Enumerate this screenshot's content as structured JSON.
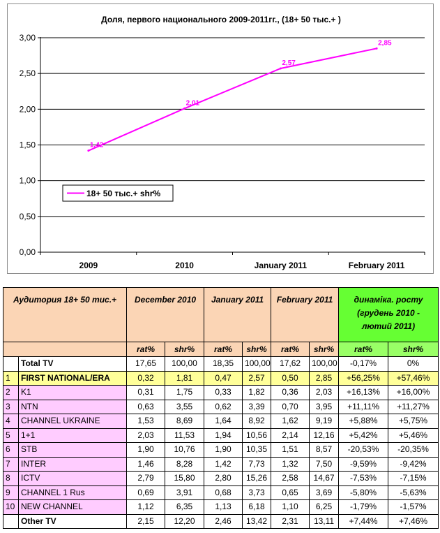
{
  "chart_data": {
    "type": "line",
    "title": "Доля, первого национального 2009-2011гг., (18+ 50 тыс.+ )",
    "categories": [
      "2009",
      "2010",
      "January 2011",
      "February 2011"
    ],
    "series": [
      {
        "name": "18+ 50 тыс.+ shr%",
        "values": [
          1.42,
          2.01,
          2.57,
          2.85
        ],
        "labels": [
          "1,42",
          "2,01",
          "2,57",
          "2,85"
        ]
      }
    ],
    "ylim": [
      0,
      3
    ],
    "yticks": [
      "0,00",
      "0,50",
      "1,00",
      "1,50",
      "2,00",
      "2,50",
      "3,00"
    ],
    "grid": true,
    "legend": "left",
    "line_color": "#ff00ff"
  },
  "table": {
    "audience_label": "Аудитория 18+ 50 тис.+",
    "periods": [
      "December 2010",
      "January 2011",
      "February 2011"
    ],
    "dynamics_label": "динамiка. росту (грудень 2010 - лютий 2011)",
    "sub_headers": [
      "rat%",
      "shr%"
    ],
    "rows": [
      {
        "rank": "",
        "name": "Total TV",
        "values": [
          "17,65",
          "100,00",
          "18,35",
          "100,00",
          "17,62",
          "100,00"
        ],
        "dyn": [
          "-0,17%",
          "0%"
        ]
      },
      {
        "rank": "1",
        "name": "FIRST NATIONAL/ERA",
        "values": [
          "0,32",
          "1,81",
          "0,47",
          "2,57",
          "0,50",
          "2,85"
        ],
        "dyn": [
          "+56,25%",
          "+57,46%"
        ]
      },
      {
        "rank": "2",
        "name": "K1",
        "values": [
          "0,31",
          "1,75",
          "0,33",
          "1,82",
          "0,36",
          "2,03"
        ],
        "dyn": [
          "+16,13%",
          "+16,00%"
        ]
      },
      {
        "rank": "3",
        "name": "NTN",
        "values": [
          "0,63",
          "3,55",
          "0,62",
          "3,39",
          "0,70",
          "3,95"
        ],
        "dyn": [
          "+11,11%",
          "+11,27%"
        ]
      },
      {
        "rank": "4",
        "name": "CHANNEL UKRAINE",
        "values": [
          "1,53",
          "8,69",
          "1,64",
          "8,92",
          "1,62",
          "9,19"
        ],
        "dyn": [
          "+5,88%",
          "+5,75%"
        ]
      },
      {
        "rank": "5",
        "name": "1+1",
        "values": [
          "2,03",
          "11,53",
          "1,94",
          "10,56",
          "2,14",
          "12,16"
        ],
        "dyn": [
          "+5,42%",
          "+5,46%"
        ]
      },
      {
        "rank": "6",
        "name": "STB",
        "values": [
          "1,90",
          "10,76",
          "1,90",
          "10,35",
          "1,51",
          "8,57"
        ],
        "dyn": [
          "-20,53%",
          "-20,35%"
        ]
      },
      {
        "rank": "7",
        "name": "INTER",
        "values": [
          "1,46",
          "8,28",
          "1,42",
          "7,73",
          "1,32",
          "7,50"
        ],
        "dyn": [
          "-9,59%",
          "-9,42%"
        ]
      },
      {
        "rank": "8",
        "name": "ICTV",
        "values": [
          "2,79",
          "15,80",
          "2,80",
          "15,26",
          "2,58",
          "14,67"
        ],
        "dyn": [
          "-7,53%",
          "-7,15%"
        ]
      },
      {
        "rank": "9",
        "name": "CHANNEL 1 Rus",
        "values": [
          "0,69",
          "3,91",
          "0,68",
          "3,73",
          "0,65",
          "3,69"
        ],
        "dyn": [
          "-5,80%",
          "-5,63%"
        ]
      },
      {
        "rank": "10",
        "name": "NEW CHANNEL",
        "values": [
          "1,12",
          "6,35",
          "1,13",
          "6,18",
          "1,10",
          "6,25"
        ],
        "dyn": [
          "-1,79%",
          "-1,57%"
        ]
      },
      {
        "rank": "",
        "name": "Other TV",
        "values": [
          "2,15",
          "12,20",
          "2,46",
          "13,42",
          "2,31",
          "13,11"
        ],
        "dyn": [
          "+7,44%",
          "+7,46%"
        ]
      }
    ]
  }
}
